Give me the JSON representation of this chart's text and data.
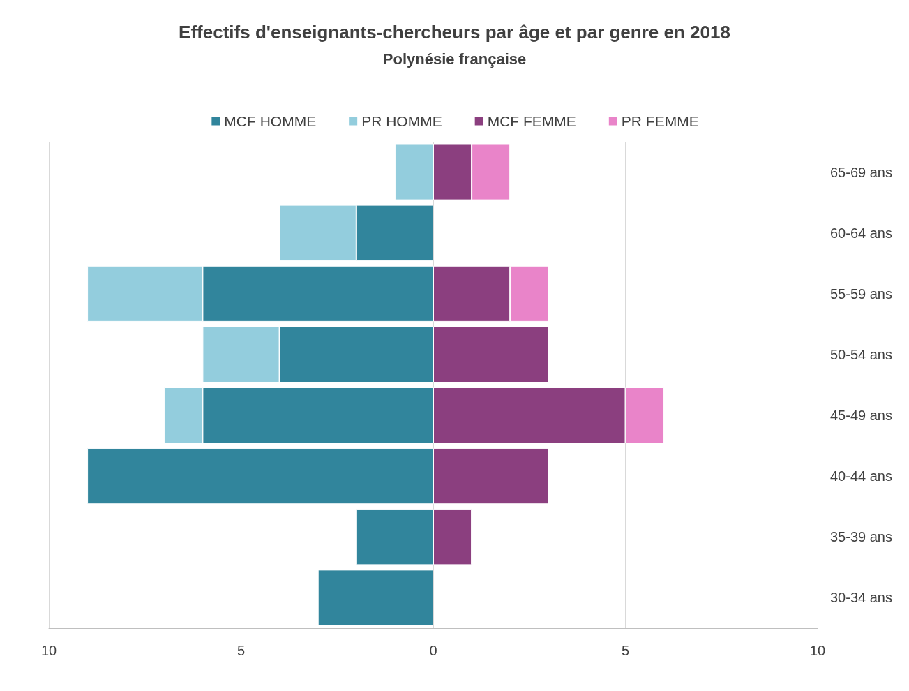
{
  "chart_data": {
    "type": "bar",
    "title": "Effectifs d'enseignants-chercheurs par âge et par genre en 2018",
    "subtitle": "Polynésie française",
    "orientation": "horizontal",
    "stacked": true,
    "categories": [
      "65-69 ans",
      "60-64 ans",
      "55-59 ans",
      "50-54 ans",
      "45-49 ans",
      "40-44 ans",
      "35-39 ans",
      "30-34 ans"
    ],
    "series": [
      {
        "name": "MCF HOMME",
        "color": "#31859c",
        "values": [
          null,
          -2,
          -6,
          -4,
          -6,
          -9,
          -2,
          -3
        ]
      },
      {
        "name": "PR HOMME",
        "color": "#93cddd",
        "values": [
          -1,
          -2,
          -3,
          -2,
          -1,
          null,
          null,
          null
        ]
      },
      {
        "name": "MCF FEMME",
        "color": "#8b3f7f",
        "values": [
          1,
          null,
          2,
          3,
          5,
          3,
          1,
          null
        ]
      },
      {
        "name": "PR FEMME",
        "color": "#e984c9",
        "values": [
          1,
          null,
          1,
          null,
          1,
          null,
          null,
          null
        ]
      }
    ],
    "xlim": [
      -10,
      10
    ],
    "xticks": [
      {
        "value": -10,
        "label": "10"
      },
      {
        "value": -5,
        "label": "5"
      },
      0,
      5,
      10
    ],
    "grid": "x",
    "legend": "top"
  }
}
